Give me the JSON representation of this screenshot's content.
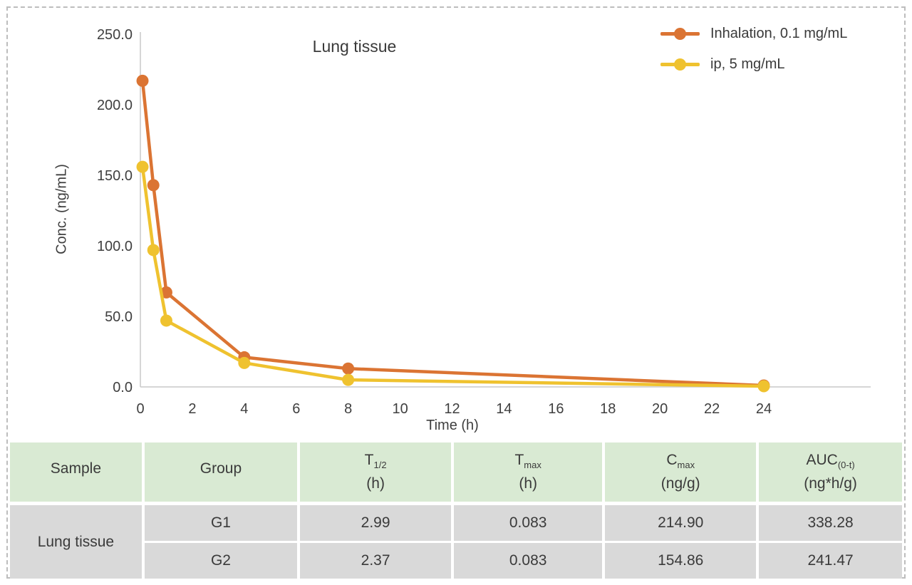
{
  "chart": {
    "title": "Lung tissue",
    "x_axis": {
      "label": "Time (h)",
      "ticks": [
        0,
        2,
        4,
        6,
        8,
        10,
        12,
        14,
        16,
        18,
        20,
        22,
        24
      ]
    },
    "y_axis": {
      "label": "Conc. (ng/mL)",
      "ticks": [
        "0.0",
        "50.0",
        "100.0",
        "150.0",
        "200.0",
        "250.0"
      ]
    },
    "axis_color": "#c9c9c9",
    "text_color": "#3f3f3f"
  },
  "chart_data": {
    "type": "line",
    "title": "Lung tissue",
    "xlabel": "Time (h)",
    "ylabel": "Conc. (ng/mL)",
    "xlim": [
      0,
      24
    ],
    "ylim": [
      0,
      250
    ],
    "grid": false,
    "legend_position": "top-right",
    "x": [
      0.083,
      0.5,
      1,
      4,
      8,
      24
    ],
    "series": [
      {
        "name": "Inhalation, 0.1 mg/mL",
        "color": "#db7433",
        "values": [
          217,
          143,
          67,
          21,
          13,
          1
        ]
      },
      {
        "name": "ip, 5 mg/mL",
        "color": "#efc22f",
        "values": [
          156,
          97,
          47,
          17,
          5,
          0.5
        ]
      }
    ]
  },
  "table": {
    "header_bg": "#d9ead3",
    "body_bg": "#d9d9d9",
    "columns": [
      {
        "main": "Sample",
        "sub": "",
        "unit": ""
      },
      {
        "main": "Group",
        "sub": "",
        "unit": ""
      },
      {
        "main": "T",
        "sub": "1/2",
        "unit": "(h)"
      },
      {
        "main": "T",
        "sub": "max",
        "unit": "(h)"
      },
      {
        "main": "C",
        "sub": "max",
        "unit": "(ng/g)"
      },
      {
        "main": "AUC",
        "sub": "(0-t)",
        "unit": "(ng*h/g)"
      }
    ],
    "sample_label": "Lung tissue",
    "rows": [
      {
        "group": "G1",
        "t_half": "2.99",
        "t_max": "0.083",
        "c_max": "214.90",
        "auc": "338.28"
      },
      {
        "group": "G2",
        "t_half": "2.37",
        "t_max": "0.083",
        "c_max": "154.86",
        "auc": "241.47"
      }
    ]
  }
}
